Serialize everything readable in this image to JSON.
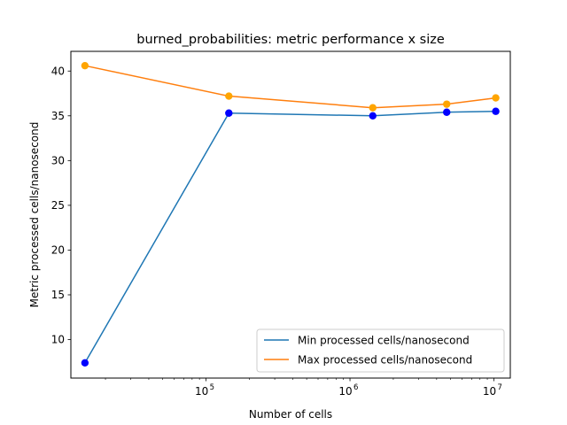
{
  "chart_data": {
    "type": "line",
    "title": "burned_probabilities: metric performance x size",
    "xlabel": "Number of cells",
    "ylabel": "Metric processed cells/nanosecond",
    "xscale": "log",
    "xlim": [
      11500,
      13000000
    ],
    "ylim": [
      5.7,
      42.2
    ],
    "x": [
      14400,
      144000,
      1440000,
      4700000,
      10300000
    ],
    "x_ticks": [
      {
        "value": 100000,
        "base": "10",
        "exp": "5"
      },
      {
        "value": 1000000,
        "base": "10",
        "exp": "6"
      },
      {
        "value": 10000000,
        "base": "10",
        "exp": "7"
      }
    ],
    "y_ticks": [
      "10",
      "15",
      "20",
      "25",
      "30",
      "35",
      "40"
    ],
    "grid": false,
    "legend_position": "lower-right",
    "series": [
      {
        "name": "Min processed cells/nanosecond",
        "values": [
          7.4,
          35.3,
          35.0,
          35.4,
          35.5
        ],
        "line_color": "#1f77b4",
        "marker_color": "#0000ff"
      },
      {
        "name": "Max processed cells/nanosecond",
        "values": [
          40.6,
          37.2,
          35.9,
          36.3,
          37.0
        ],
        "line_color": "#ff7f0e",
        "marker_color": "#ffa500"
      }
    ]
  }
}
